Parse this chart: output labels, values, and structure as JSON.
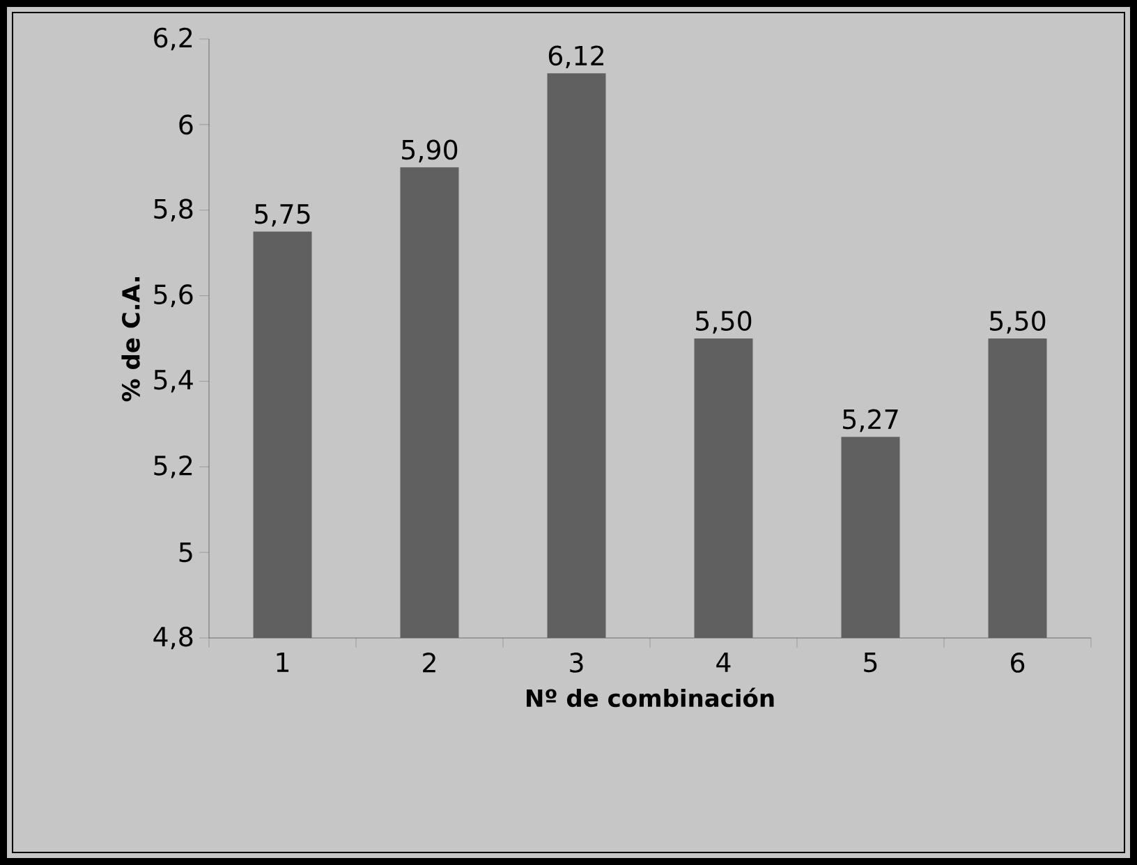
{
  "chart_data": {
    "type": "bar",
    "xlabel": "Nº de combinación",
    "ylabel": "% de C.A.",
    "categories": [
      "1",
      "2",
      "3",
      "4",
      "5",
      "6"
    ],
    "values": [
      5.75,
      5.9,
      6.12,
      5.5,
      5.27,
      5.5
    ],
    "value_labels": [
      "5,75",
      "5,90",
      "6,12",
      "5,50",
      "5,27",
      "5,50"
    ],
    "color": "#606060",
    "ylim": [
      4.8,
      6.2
    ],
    "yticks": [
      {
        "value": 4.8,
        "label": "4,8"
      },
      5,
      {
        "value": 5.2,
        "label": "5,2"
      },
      {
        "value": 5.4,
        "label": "5,4"
      },
      {
        "value": 5.6,
        "label": "5,6"
      },
      {
        "value": 5.8,
        "label": "5,8"
      },
      6,
      {
        "value": 6.2,
        "label": "6,2"
      }
    ]
  }
}
